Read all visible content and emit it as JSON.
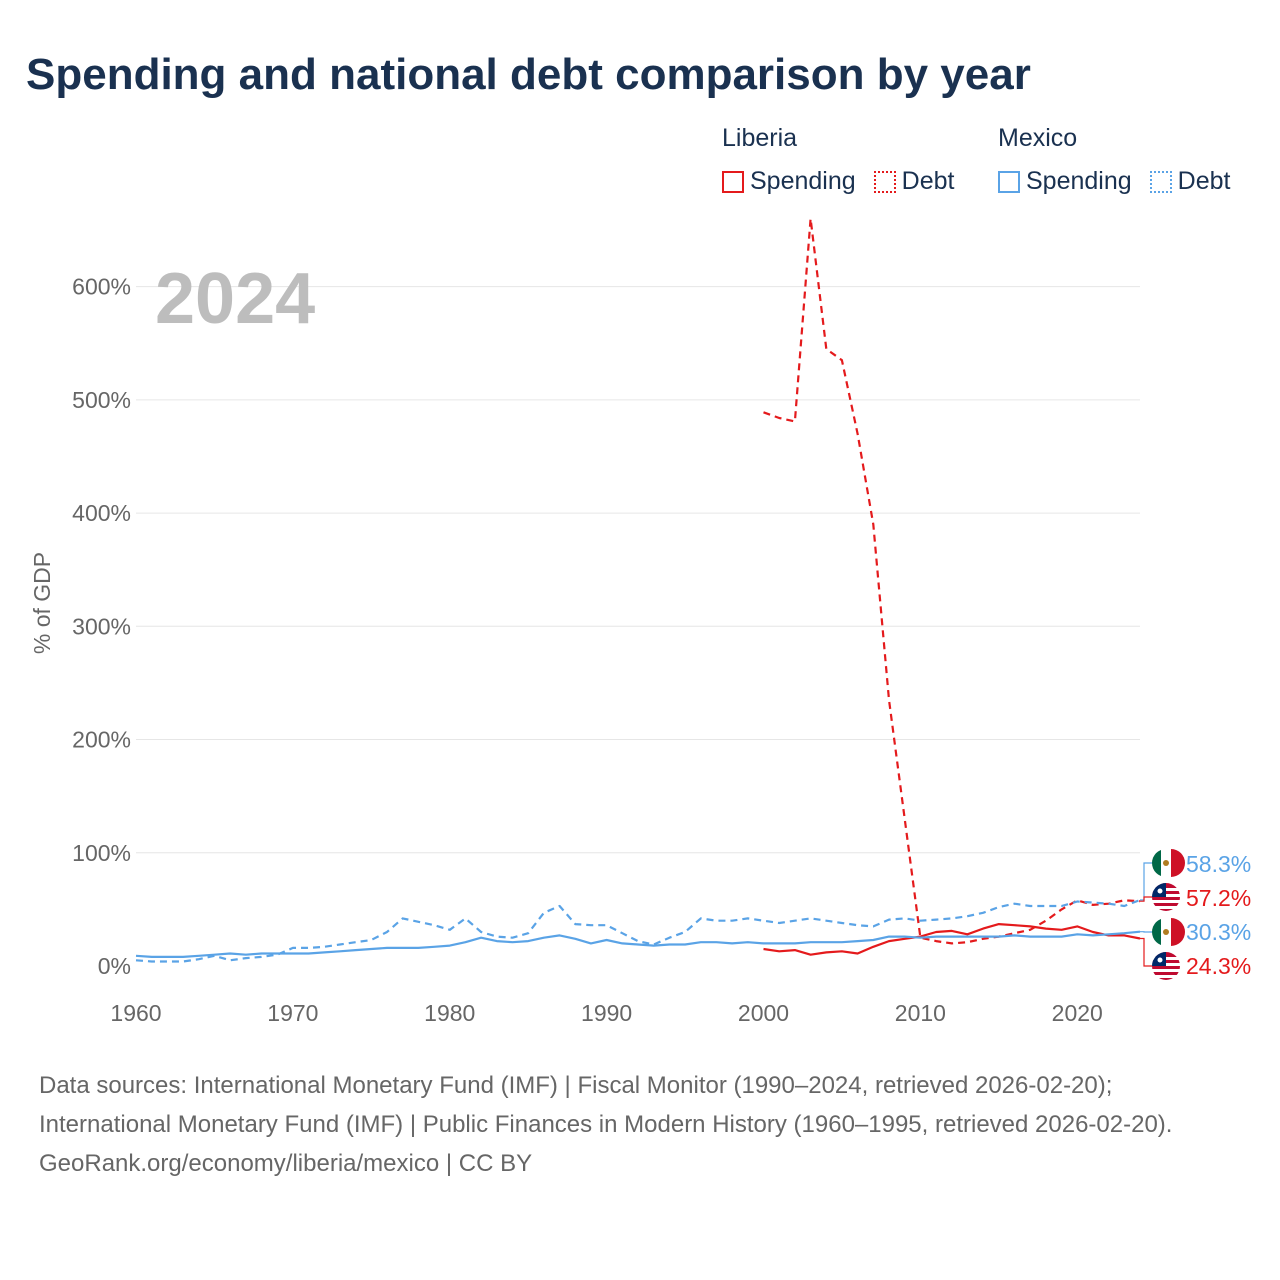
{
  "title": "Spending and national debt comparison by year",
  "legend": {
    "groups": [
      {
        "country": "Liberia",
        "spending_label": "Spending",
        "debt_label": "Debt",
        "color": "#e41a1c"
      },
      {
        "country": "Mexico",
        "spending_label": "Spending",
        "debt_label": "Debt",
        "color": "#5aa3e6"
      }
    ]
  },
  "year_overlay": "2024",
  "end_labels": {
    "mexico_debt": "58.3%",
    "liberia_debt": "57.2%",
    "mexico_spending": "30.3%",
    "liberia_spending": "24.3%"
  },
  "footer": {
    "sources": "Data sources: International Monetary Fund (IMF) | Fiscal Monitor (1990–2024, retrieved 2026-02-20); International Monetary Fund (IMF) | Public Finances in Modern History (1960–1995, retrieved 2026-02-20).",
    "credit": "GeoRank.org/economy/liberia/mexico | CC BY"
  },
  "chart_data": {
    "type": "line",
    "title": "Spending and national debt comparison by year",
    "xlabel": "",
    "ylabel": "% of GDP",
    "xlim": [
      1960,
      2024
    ],
    "ylim": [
      0,
      650
    ],
    "y_ticks": [
      0,
      100,
      200,
      300,
      400,
      500,
      600
    ],
    "y_tick_labels": [
      "0%",
      "100%",
      "200%",
      "300%",
      "400%",
      "500%",
      "600%"
    ],
    "x_ticks": [
      1960,
      1970,
      1980,
      1990,
      2000,
      2010,
      2020
    ],
    "x_tick_labels": [
      "1960",
      "1970",
      "1980",
      "1990",
      "2000",
      "2010",
      "2020"
    ],
    "grid": true,
    "legend_position": "top-right",
    "series": [
      {
        "name": "Liberia Debt",
        "country": "Liberia",
        "metric": "Debt",
        "color": "#e41a1c",
        "dash": "dashed",
        "x": [
          2000,
          2001,
          2002,
          2003,
          2004,
          2005,
          2006,
          2007,
          2008,
          2009,
          2010,
          2011,
          2012,
          2013,
          2014,
          2015,
          2016,
          2017,
          2018,
          2019,
          2020,
          2021,
          2022,
          2023,
          2024
        ],
        "values": [
          489,
          484,
          481,
          660,
          545,
          535,
          470,
          390,
          235,
          130,
          25,
          22,
          20,
          21,
          24,
          26,
          29,
          32,
          40,
          50,
          58,
          54,
          55,
          58,
          57.2
        ]
      },
      {
        "name": "Liberia Spending",
        "country": "Liberia",
        "metric": "Spending",
        "color": "#e41a1c",
        "dash": "solid",
        "x": [
          2000,
          2001,
          2002,
          2003,
          2004,
          2005,
          2006,
          2007,
          2008,
          2009,
          2010,
          2011,
          2012,
          2013,
          2014,
          2015,
          2016,
          2017,
          2018,
          2019,
          2020,
          2021,
          2022,
          2023,
          2024
        ],
        "values": [
          15,
          13,
          14,
          10,
          12,
          13,
          11,
          17,
          22,
          24,
          26,
          30,
          31,
          28,
          33,
          37,
          36,
          35,
          33,
          32,
          35,
          30,
          27,
          27,
          24.3
        ]
      },
      {
        "name": "Mexico Debt",
        "country": "Mexico",
        "metric": "Debt",
        "color": "#5aa3e6",
        "dash": "dashed",
        "x": [
          1960,
          1961,
          1962,
          1963,
          1964,
          1965,
          1966,
          1967,
          1968,
          1969,
          1970,
          1971,
          1972,
          1973,
          1974,
          1975,
          1976,
          1977,
          1978,
          1979,
          1980,
          1981,
          1982,
          1983,
          1984,
          1985,
          1986,
          1987,
          1988,
          1989,
          1990,
          1991,
          1992,
          1993,
          1994,
          1995,
          1996,
          1997,
          1998,
          1999,
          2000,
          2001,
          2002,
          2003,
          2004,
          2005,
          2006,
          2007,
          2008,
          2009,
          2010,
          2011,
          2012,
          2013,
          2014,
          2015,
          2016,
          2017,
          2018,
          2019,
          2020,
          2021,
          2022,
          2023,
          2024
        ],
        "values": [
          5,
          4,
          4,
          4,
          6,
          9,
          5,
          7,
          8,
          10,
          16,
          16,
          17,
          19,
          21,
          23,
          30,
          42,
          39,
          36,
          32,
          42,
          30,
          26,
          25,
          29,
          47,
          53,
          37,
          36,
          36,
          29,
          22,
          19,
          25,
          30,
          42,
          40,
          40,
          42,
          40,
          38,
          40,
          42,
          40,
          38,
          36,
          35,
          41,
          42,
          40,
          41,
          42,
          44,
          47,
          52,
          55,
          53,
          53,
          53,
          57,
          56,
          55,
          53,
          58.3
        ]
      },
      {
        "name": "Mexico Spending",
        "country": "Mexico",
        "metric": "Spending",
        "color": "#5aa3e6",
        "dash": "solid",
        "x": [
          1960,
          1961,
          1962,
          1963,
          1964,
          1965,
          1966,
          1967,
          1968,
          1969,
          1970,
          1971,
          1972,
          1973,
          1974,
          1975,
          1976,
          1977,
          1978,
          1979,
          1980,
          1981,
          1982,
          1983,
          1984,
          1985,
          1986,
          1987,
          1988,
          1989,
          1990,
          1991,
          1992,
          1993,
          1994,
          1995,
          1996,
          1997,
          1998,
          1999,
          2000,
          2001,
          2002,
          2003,
          2004,
          2005,
          2006,
          2007,
          2008,
          2009,
          2010,
          2011,
          2012,
          2013,
          2014,
          2015,
          2016,
          2017,
          2018,
          2019,
          2020,
          2021,
          2022,
          2023,
          2024
        ],
        "values": [
          9,
          8,
          8,
          8,
          9,
          10,
          11,
          10,
          11,
          11,
          11,
          11,
          12,
          13,
          14,
          15,
          16,
          16,
          16,
          17,
          18,
          21,
          25,
          22,
          21,
          22,
          25,
          27,
          24,
          20,
          23,
          20,
          19,
          18,
          19,
          19,
          21,
          21,
          20,
          21,
          20,
          20,
          20,
          21,
          21,
          21,
          22,
          23,
          26,
          26,
          25,
          26,
          26,
          26,
          26,
          26,
          27,
          26,
          26,
          26,
          28,
          27,
          28,
          29,
          30.3
        ]
      }
    ]
  }
}
